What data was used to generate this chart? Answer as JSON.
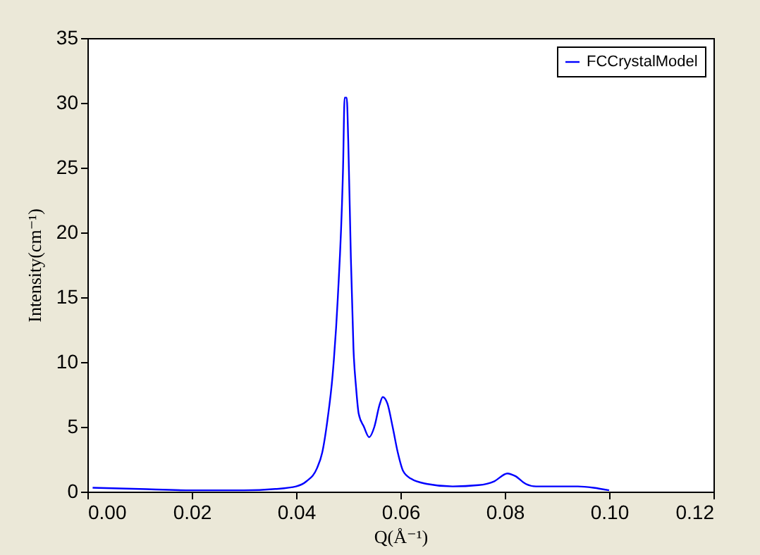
{
  "chart_data": {
    "type": "line",
    "xlabel": "Q(Å⁻¹)",
    "ylabel": "Intensity(cm⁻¹)",
    "x": [
      0.001,
      0.01,
      0.02,
      0.03,
      0.036,
      0.04,
      0.042,
      0.044,
      0.045,
      0.046,
      0.047,
      0.048,
      0.049,
      0.0493,
      0.0497,
      0.05,
      0.0505,
      0.051,
      0.0515,
      0.052,
      0.053,
      0.054,
      0.055,
      0.056,
      0.0566,
      0.0575,
      0.0585,
      0.0595,
      0.0605,
      0.062,
      0.065,
      0.07,
      0.075,
      0.078,
      0.0805,
      0.082,
      0.084,
      0.086,
      0.09,
      0.094,
      0.097,
      0.1
    ],
    "series": [
      {
        "name": "FCCrystalModel",
        "color": "#0000ff",
        "values": [
          0.3,
          0.2,
          0.1,
          0.1,
          0.2,
          0.4,
          0.8,
          1.8,
          3,
          5.5,
          9,
          15,
          25,
          30.4,
          30.4,
          27,
          18,
          11,
          8,
          6,
          5,
          4.2,
          5,
          6.7,
          7.3,
          6.8,
          5,
          3,
          1.6,
          1,
          0.6,
          0.4,
          0.5,
          0.8,
          1.4,
          1.2,
          0.6,
          0.4,
          0.4,
          0.4,
          0.3,
          0.1
        ]
      }
    ],
    "xlim": [
      0,
      0.12
    ],
    "xticks": [
      {
        "value": 0,
        "label": "0.00"
      },
      {
        "value": 0.02,
        "label": "0.02"
      },
      {
        "value": 0.04,
        "label": "0.04"
      },
      {
        "value": 0.06,
        "label": "0.06"
      },
      {
        "value": 0.08,
        "label": "0.08"
      },
      {
        "value": 0.1,
        "label": "0.10"
      },
      {
        "value": 0.12,
        "label": "0.12"
      }
    ],
    "ylim": [
      0,
      35
    ],
    "yticks": [
      0,
      5,
      10,
      15,
      20,
      25,
      30,
      35
    ],
    "legend": "top right",
    "marker": "none",
    "line_style": "solid"
  }
}
